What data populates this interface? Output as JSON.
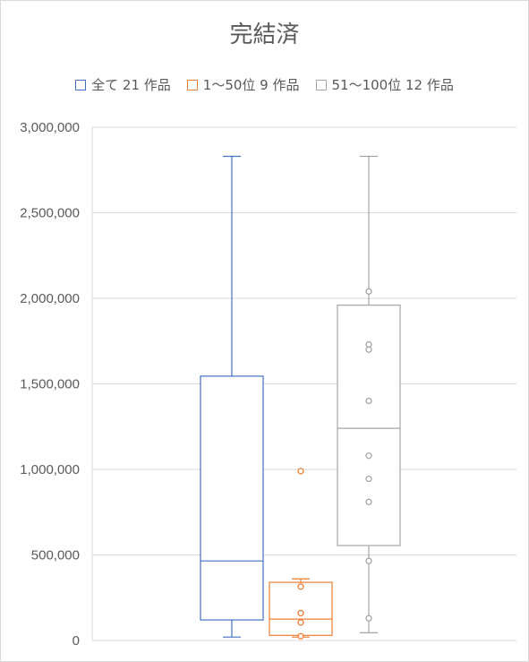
{
  "chart_data": {
    "type": "box",
    "title": "完結済",
    "legend_position": "top",
    "grid": true,
    "ylim": [
      0,
      3000000
    ],
    "y_ticks": [
      "3,000,000",
      "2,500,000",
      "2,000,000",
      "1,500,000",
      "1,000,000",
      "500,000",
      "0"
    ],
    "y_tick_values": [
      3000000,
      2500000,
      2000000,
      1500000,
      1000000,
      500000,
      0
    ],
    "series": [
      {
        "name": "全て 21 作品",
        "color": "#4472c4",
        "whisker_low": 20000,
        "q1": 120000,
        "median": 465000,
        "q3": 1545000,
        "whisker_high": 2830000,
        "points": []
      },
      {
        "name": "1〜50位 9 作品",
        "color": "#ed7d31",
        "whisker_low": 20000,
        "q1": 30000,
        "median": 125000,
        "q3": 340000,
        "whisker_high": 360000,
        "points": [
          990000,
          315000,
          160000,
          105000,
          25000
        ]
      },
      {
        "name": "51〜100位 12 作品",
        "color": "#a5a5a5",
        "whisker_low": 45000,
        "q1": 555000,
        "median": 1240000,
        "q3": 1960000,
        "whisker_high": 2830000,
        "points": [
          2040000,
          1730000,
          1700000,
          1400000,
          1080000,
          945000,
          810000,
          465000,
          130000
        ]
      }
    ]
  }
}
